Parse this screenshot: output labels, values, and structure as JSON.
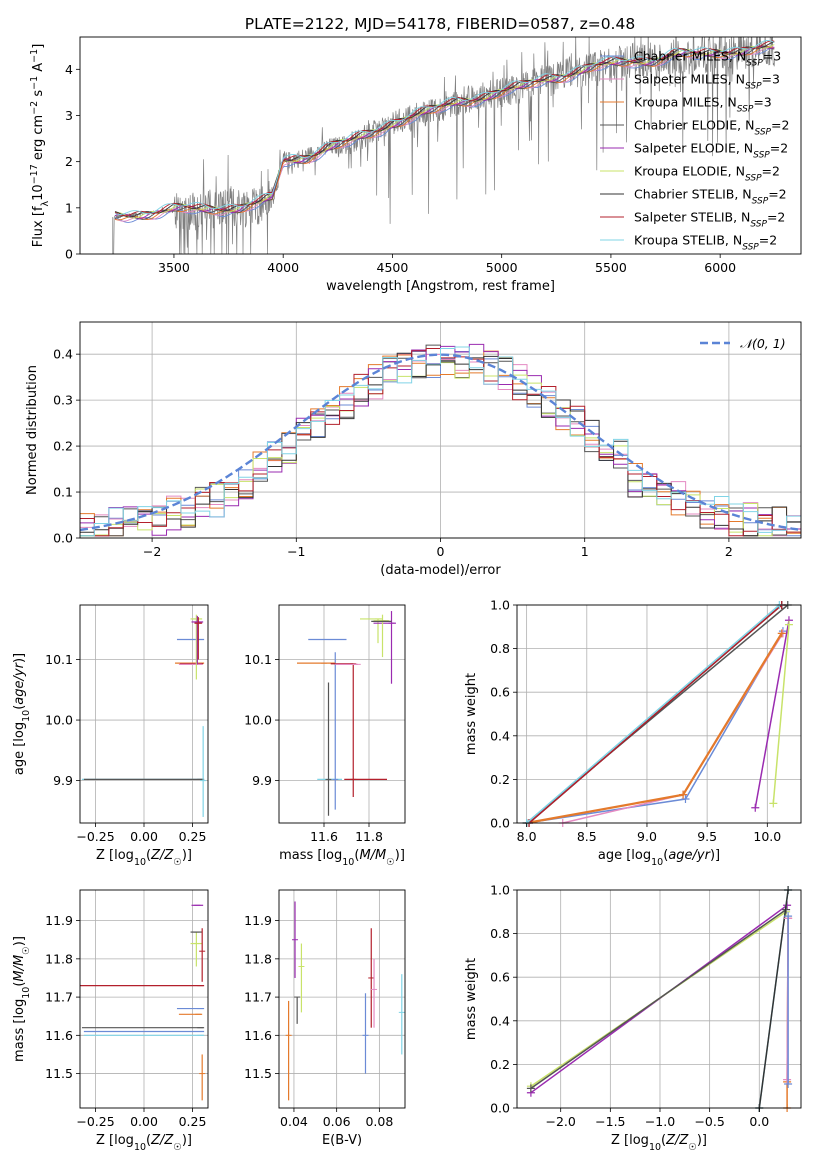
{
  "figure": {
    "title": "PLATE=2122, MJD=54178, FIBERID=0587, z=0.48",
    "series_colors": {
      "Chabrier MILES": "#6b8bd6",
      "Salpeter MILES": "#e48ac2",
      "Kroupa MILES": "#e47a2c",
      "Chabrier ELODIE": "#555555",
      "Salpeter ELODIE": "#9a2bb0",
      "Kroupa ELODIE": "#c8e36a",
      "Chabrier STELIB": "#333333",
      "Salpeter STELIB": "#b3202c",
      "Kroupa STELIB": "#80d4e6"
    }
  },
  "chart_data": [
    {
      "id": "spectrum",
      "type": "line",
      "xlabel": "wavelength [Angstrom, rest frame]",
      "ylabel": "Flux [f_λ 10^-17 erg cm^-2 s^-1 A^-1]",
      "xlim": [
        3070,
        6370
      ],
      "ylim": [
        0,
        4.7
      ],
      "xticks": [
        3500,
        4000,
        4500,
        5000,
        5500,
        6000
      ],
      "yticks": [
        0,
        1,
        2,
        3,
        4
      ],
      "grid": false,
      "legend_position": "upper-right",
      "legend": [
        {
          "label": "Chabrier MILES, N_SSP=3",
          "color": "#6b8bd6"
        },
        {
          "label": "Salpeter MILES, N_SSP=3",
          "color": "#e48ac2"
        },
        {
          "label": "Kroupa MILES, N_SSP=3",
          "color": "#e47a2c"
        },
        {
          "label": "Chabrier ELODIE, N_SSP=2",
          "color": "#555555"
        },
        {
          "label": "Salpeter ELODIE, N_SSP=2",
          "color": "#9a2bb0"
        },
        {
          "label": "Kroupa ELODIE, N_SSP=2",
          "color": "#c8e36a"
        },
        {
          "label": "Chabrier STELIB, N_SSP=2",
          "color": "#333333"
        },
        {
          "label": "Salpeter STELIB, N_SSP=2",
          "color": "#b3202c"
        },
        {
          "label": "Kroupa STELIB, N_SSP=2",
          "color": "#80d4e6"
        }
      ],
      "data_series": {
        "name": "data",
        "color": "#808080",
        "x_range": [
          3220,
          6250
        ]
      },
      "model_anchors": {
        "x": [
          3220,
          3300,
          3400,
          3500,
          3600,
          3700,
          3800,
          3900,
          3950,
          4000,
          4100,
          4200,
          4300,
          4400,
          4500,
          4600,
          4700,
          4800,
          4900,
          5000,
          5100,
          5200,
          5300,
          5400,
          5500,
          5600,
          5700,
          5800,
          5900,
          6000,
          6100,
          6250
        ],
        "y": [
          0.8,
          0.85,
          0.9,
          0.95,
          0.95,
          1.0,
          1.0,
          1.1,
          1.2,
          2.0,
          2.1,
          2.3,
          2.4,
          2.6,
          2.85,
          3.0,
          3.1,
          3.3,
          3.4,
          3.5,
          3.6,
          3.8,
          3.9,
          4.0,
          4.1,
          4.2,
          4.2,
          4.3,
          4.3,
          4.4,
          4.4,
          4.45
        ]
      }
    },
    {
      "id": "residuals",
      "type": "histogram",
      "xlabel": "(data-model)/error",
      "ylabel": "Normed distribution",
      "xlim": [
        -2.5,
        2.5
      ],
      "ylim": [
        0,
        0.47
      ],
      "xticks": [
        -2,
        -1,
        0,
        1,
        2
      ],
      "yticks": [
        0.0,
        0.1,
        0.2,
        0.3,
        0.4
      ],
      "grid": true,
      "legend_position": "upper-right",
      "reference_curve": {
        "label": "𝒩(0, 1)",
        "mean": 0,
        "sigma": 1,
        "color": "#5b84d6",
        "style": "dashed"
      },
      "bin_width": 0.1
    },
    {
      "id": "age-Z",
      "type": "errorbar",
      "xlabel": "Z [log10(Z/Z☉)]",
      "ylabel": "age  [log10(age/yr)]",
      "xlim": [
        -0.33,
        0.33
      ],
      "ylim": [
        9.83,
        10.19
      ],
      "xticks": [
        -0.25,
        0.0,
        0.25
      ],
      "xticklabels": [
        "−0.25",
        "0.00",
        "0.25"
      ],
      "yticks": [
        9.9,
        10.0,
        10.1
      ],
      "grid": true,
      "points": [
        {
          "x": 0.29,
          "y": 9.902,
          "xerr": [
            0.61,
            0.02
          ],
          "yerr": [
            0.0,
            0.0
          ],
          "color": "#80d4e6"
        },
        {
          "x": 0.29,
          "y": 9.902,
          "xerr": [
            0.6,
            0.02
          ],
          "yerr": [
            0.0,
            0.0
          ],
          "color": "#555555"
        },
        {
          "x": 0.305,
          "y": 9.9,
          "xerr": [
            0.0,
            0.0
          ],
          "yerr": [
            0.06,
            0.09
          ],
          "color": "#80d4e6"
        },
        {
          "x": 0.29,
          "y": 10.133,
          "xerr": [
            0.12,
            0.02
          ],
          "yerr": [
            0.0,
            0.0
          ],
          "color": "#6b8bd6"
        },
        {
          "x": 0.28,
          "y": 10.094,
          "xerr": [
            0.12,
            0.03
          ],
          "yerr": [
            0.0,
            0.0
          ],
          "color": "#e47a2c"
        },
        {
          "x": 0.285,
          "y": 10.093,
          "xerr": [
            0.1,
            0.02
          ],
          "yerr": [
            0.0,
            0.0
          ],
          "color": "#b3202c"
        },
        {
          "x": 0.28,
          "y": 10.092,
          "xerr": [
            0.1,
            0.02
          ],
          "yerr": [
            0.0,
            0.0
          ],
          "color": "#e48ac2"
        },
        {
          "x": 0.27,
          "y": 10.167,
          "xerr": [
            0.03,
            0.03
          ],
          "yerr": [
            0.1,
            0.007
          ],
          "color": "#c8e36a"
        },
        {
          "x": 0.275,
          "y": 10.162,
          "xerr": [
            0.03,
            0.03
          ],
          "yerr": [
            0.07,
            0.01
          ],
          "color": "#9a2bb0"
        },
        {
          "x": 0.28,
          "y": 10.16,
          "xerr": [
            0.02,
            0.02
          ],
          "yerr": [
            0.06,
            0.01
          ],
          "color": "#b3202c"
        }
      ]
    },
    {
      "id": "age-mass",
      "type": "errorbar",
      "xlabel": "mass [log10(M/M☉)]",
      "ylabel": "",
      "xlim": [
        11.4,
        11.96
      ],
      "ylim": [
        9.83,
        10.19
      ],
      "xticks": [
        11.6,
        11.8
      ],
      "yticks": [
        9.9,
        10.0,
        10.1
      ],
      "grid": true,
      "points": [
        {
          "x": 11.73,
          "y": 9.902,
          "xerr": [
            0.04,
            0.15
          ],
          "yerr": [
            0.0,
            0.0
          ],
          "color": "#b3202c"
        },
        {
          "x": 11.63,
          "y": 9.902,
          "xerr": [
            0.06,
            0.05
          ],
          "yerr": [
            0.0,
            0.0
          ],
          "color": "#80d4e6"
        },
        {
          "x": 11.62,
          "y": 9.902,
          "xerr": [
            0.0,
            0.0
          ],
          "yerr": [
            0.06,
            0.16
          ],
          "color": "#555555"
        },
        {
          "x": 11.65,
          "y": 9.902,
          "xerr": [
            0.0,
            0.0
          ],
          "yerr": [
            0.05,
            0.21
          ],
          "color": "#6b8bd6"
        },
        {
          "x": 11.63,
          "y": 10.133,
          "xerr": [
            0.1,
            0.07
          ],
          "yerr": [
            0.0,
            0.0
          ],
          "color": "#6b8bd6"
        },
        {
          "x": 11.6,
          "y": 10.094,
          "xerr": [
            0.12,
            0.05
          ],
          "yerr": [
            0.0,
            0.0
          ],
          "color": "#e47a2c"
        },
        {
          "x": 11.73,
          "y": 10.093,
          "xerr": [
            0.1,
            0.0
          ],
          "yerr": [
            0.22,
            0.0
          ],
          "color": "#b3202c"
        },
        {
          "x": 11.75,
          "y": 10.092,
          "xerr": [
            0.1,
            0.0
          ],
          "yerr": [
            0.0,
            0.0
          ],
          "color": "#e48ac2"
        },
        {
          "x": 11.84,
          "y": 10.167,
          "xerr": [
            0.08,
            0.02
          ],
          "yerr": [
            0.04,
            0.0
          ],
          "color": "#c8e36a"
        },
        {
          "x": 11.9,
          "y": 10.16,
          "xerr": [
            0.08,
            0.02
          ],
          "yerr": [
            0.1,
            0.02
          ],
          "color": "#9a2bb0"
        },
        {
          "x": 11.86,
          "y": 10.164,
          "xerr": [
            0.04,
            0.03
          ],
          "yerr": [
            0.06,
            0.01
          ],
          "color": "#c8e36a"
        },
        {
          "x": 11.87,
          "y": 10.163,
          "xerr": [
            0.06,
            0.03
          ],
          "yerr": [
            0.0,
            0.0
          ],
          "color": "#555555"
        }
      ]
    },
    {
      "id": "weight-age",
      "type": "line",
      "xlabel": "age  [log10(age/yr)]",
      "ylabel": "mass weight",
      "xlim": [
        7.92,
        10.28
      ],
      "ylim": [
        0,
        1
      ],
      "xticks": [
        8.0,
        8.5,
        9.0,
        9.5,
        10.0
      ],
      "yticks": [
        0.0,
        0.2,
        0.4,
        0.6,
        0.8,
        1.0
      ],
      "grid": true,
      "series": [
        {
          "name": "Chabrier MILES",
          "color": "#6b8bd6",
          "x": [
            8.0,
            9.32,
            10.13
          ],
          "y": [
            0.0,
            0.11,
            0.88
          ]
        },
        {
          "name": "Salpeter MILES",
          "color": "#e48ac2",
          "x": [
            8.3,
            9.3,
            10.13
          ],
          "y": [
            0.0,
            0.13,
            0.87
          ]
        },
        {
          "name": "Kroupa MILES",
          "color": "#e47a2c",
          "x": [
            8.0,
            9.3,
            10.12
          ],
          "y": [
            0.0,
            0.13,
            0.87
          ]
        },
        {
          "name": "Chabrier ELODIE",
          "color": "#555555",
          "x": [
            8.0,
            10.17
          ],
          "y": [
            0.0,
            1.0
          ]
        },
        {
          "name": "Salpeter ELODIE",
          "color": "#9a2bb0",
          "x": [
            9.9,
            10.18
          ],
          "y": [
            0.07,
            0.93
          ]
        },
        {
          "name": "Kroupa ELODIE",
          "color": "#c8e36a",
          "x": [
            10.05,
            10.18
          ],
          "y": [
            0.09,
            0.91
          ]
        },
        {
          "name": "Chabrier STELIB",
          "color": "#333333",
          "x": [
            8.02,
            10.12
          ],
          "y": [
            0.0,
            1.0
          ]
        },
        {
          "name": "Salpeter STELIB",
          "color": "#b3202c",
          "x": [
            8.02,
            10.12
          ],
          "y": [
            0.0,
            1.0
          ]
        },
        {
          "name": "Kroupa STELIB",
          "color": "#80d4e6",
          "x": [
            8.0,
            10.1
          ],
          "y": [
            0.0,
            1.0
          ]
        }
      ]
    },
    {
      "id": "mass-Z",
      "type": "errorbar",
      "xlabel": "Z [log10(Z/Z☉)]",
      "ylabel": "mass [log10(M/M☉)]",
      "xlim": [
        -0.33,
        0.33
      ],
      "ylim": [
        11.41,
        11.98
      ],
      "xticks": [
        -0.25,
        0.0,
        0.25
      ],
      "xticklabels": [
        "−0.25",
        "0.00",
        "0.25"
      ],
      "yticks": [
        11.5,
        11.6,
        11.7,
        11.8,
        11.9
      ],
      "grid": true,
      "points": [
        {
          "x": 0.29,
          "y": 11.73,
          "xerr": [
            0.62,
            0.02
          ],
          "yerr": [
            0.0,
            0.0
          ],
          "color": "#b3202c"
        },
        {
          "x": 0.29,
          "y": 11.62,
          "xerr": [
            0.61,
            0.02
          ],
          "yerr": [
            0.0,
            0.0
          ],
          "color": "#555555"
        },
        {
          "x": 0.29,
          "y": 11.61,
          "xerr": [
            0.6,
            0.02
          ],
          "yerr": [
            0.0,
            0.0
          ],
          "color": "#6b8bd6"
        },
        {
          "x": 0.29,
          "y": 11.6,
          "xerr": [
            0.6,
            0.02
          ],
          "yerr": [
            0.0,
            0.0
          ],
          "color": "#80d4e6"
        },
        {
          "x": 0.29,
          "y": 11.67,
          "xerr": [
            0.12,
            0.02
          ],
          "yerr": [
            0.0,
            0.0
          ],
          "color": "#6b8bd6"
        },
        {
          "x": 0.28,
          "y": 11.655,
          "xerr": [
            0.1,
            0.02
          ],
          "yerr": [
            0.0,
            0.0
          ],
          "color": "#e47a2c"
        },
        {
          "x": 0.3,
          "y": 11.5,
          "xerr": [
            0.0,
            0.0
          ],
          "yerr": [
            0.07,
            0.05
          ],
          "color": "#e47a2c"
        },
        {
          "x": 0.275,
          "y": 11.94,
          "xerr": [
            0.03,
            0.03
          ],
          "yerr": [
            0.0,
            0.0
          ],
          "color": "#9a2bb0"
        },
        {
          "x": 0.27,
          "y": 11.84,
          "xerr": [
            0.03,
            0.03
          ],
          "yerr": [
            0.06,
            0.03
          ],
          "color": "#c8e36a"
        },
        {
          "x": 0.27,
          "y": 11.87,
          "xerr": [
            0.03,
            0.03
          ],
          "yerr": [
            0.0,
            0.0
          ],
          "color": "#555555"
        },
        {
          "x": 0.3,
          "y": 11.82,
          "xerr": [
            0.0,
            0.0
          ],
          "yerr": [
            0.08,
            0.06
          ],
          "color": "#b3202c"
        }
      ]
    },
    {
      "id": "mass-EBV",
      "type": "errorbar",
      "xlabel": "E(B-V)",
      "ylabel": "",
      "xlim": [
        0.033,
        0.092
      ],
      "ylim": [
        11.41,
        11.98
      ],
      "xticks": [
        0.04,
        0.06,
        0.08
      ],
      "yticks": [
        11.5,
        11.6,
        11.7,
        11.8,
        11.9
      ],
      "grid": true,
      "points": [
        {
          "x": 0.0375,
          "y": 11.6,
          "xerr": [
            0,
            0
          ],
          "yerr": [
            0.17,
            0.09
          ],
          "color": "#e47a2c"
        },
        {
          "x": 0.0405,
          "y": 11.85,
          "xerr": [
            0,
            0
          ],
          "yerr": [
            0.1,
            0.1
          ],
          "color": "#9a2bb0"
        },
        {
          "x": 0.0415,
          "y": 11.7,
          "xerr": [
            0,
            0
          ],
          "yerr": [
            0.07,
            0.0
          ],
          "color": "#555555"
        },
        {
          "x": 0.0435,
          "y": 11.78,
          "xerr": [
            0,
            0
          ],
          "yerr": [
            0.12,
            0.06
          ],
          "color": "#c8e36a"
        },
        {
          "x": 0.0735,
          "y": 11.6,
          "xerr": [
            0,
            0
          ],
          "yerr": [
            0.1,
            0.11
          ],
          "color": "#6b8bd6"
        },
        {
          "x": 0.0762,
          "y": 11.75,
          "xerr": [
            0,
            0
          ],
          "yerr": [
            0.13,
            0.13
          ],
          "color": "#b3202c"
        },
        {
          "x": 0.0775,
          "y": 11.72,
          "xerr": [
            0,
            0
          ],
          "yerr": [
            0.1,
            0.08
          ],
          "color": "#e48ac2"
        },
        {
          "x": 0.0905,
          "y": 11.66,
          "xerr": [
            0,
            0
          ],
          "yerr": [
            0.11,
            0.1
          ],
          "color": "#80d4e6"
        }
      ]
    },
    {
      "id": "weight-Z",
      "type": "line",
      "xlabel": "Z [log10(Z/Z☉)]",
      "ylabel": "mass weight",
      "xlim": [
        -2.44,
        0.42
      ],
      "ylim": [
        0,
        1
      ],
      "xticks": [
        -2.0,
        -1.5,
        -1.0,
        -0.5,
        0.0
      ],
      "xticklabels": [
        "−2.0",
        "−1.5",
        "−1.0",
        "−0.5",
        "0.0"
      ],
      "yticks": [
        0.0,
        0.2,
        0.4,
        0.6,
        0.8,
        1.0
      ],
      "grid": true,
      "series": [
        {
          "name": "Salpeter ELODIE",
          "color": "#9a2bb0",
          "x": [
            -2.3,
            0.28
          ],
          "y": [
            0.07,
            0.93
          ]
        },
        {
          "name": "Kroupa ELODIE",
          "color": "#c8e36a",
          "x": [
            -2.3,
            0.27
          ],
          "y": [
            0.1,
            0.9
          ]
        },
        {
          "name": "Chabrier ELODIE",
          "color": "#555555",
          "x": [
            -2.3,
            0.27
          ],
          "y": [
            0.09,
            0.91
          ]
        },
        {
          "name": "Kroupa STELIB",
          "color": "#80d4e6",
          "x": [
            0.0,
            0.29
          ],
          "y": [
            0.0,
            1.0
          ]
        },
        {
          "name": "Chabrier STELIB",
          "color": "#333333",
          "x": [
            0.0,
            0.29
          ],
          "y": [
            0.0,
            1.0
          ]
        },
        {
          "name": "Kroupa MILES",
          "color": "#e47a2c",
          "x": [
            0.28,
            0.28,
            0.29
          ],
          "y": [
            0.0,
            0.12,
            0.87
          ]
        },
        {
          "name": "Salpeter MILES",
          "color": "#e48ac2",
          "x": [
            0.28,
            0.29
          ],
          "y": [
            0.13,
            0.87
          ]
        },
        {
          "name": "Chabrier MILES",
          "color": "#6b8bd6",
          "x": [
            0.29,
            0.29
          ],
          "y": [
            0.11,
            0.88
          ]
        }
      ]
    }
  ]
}
